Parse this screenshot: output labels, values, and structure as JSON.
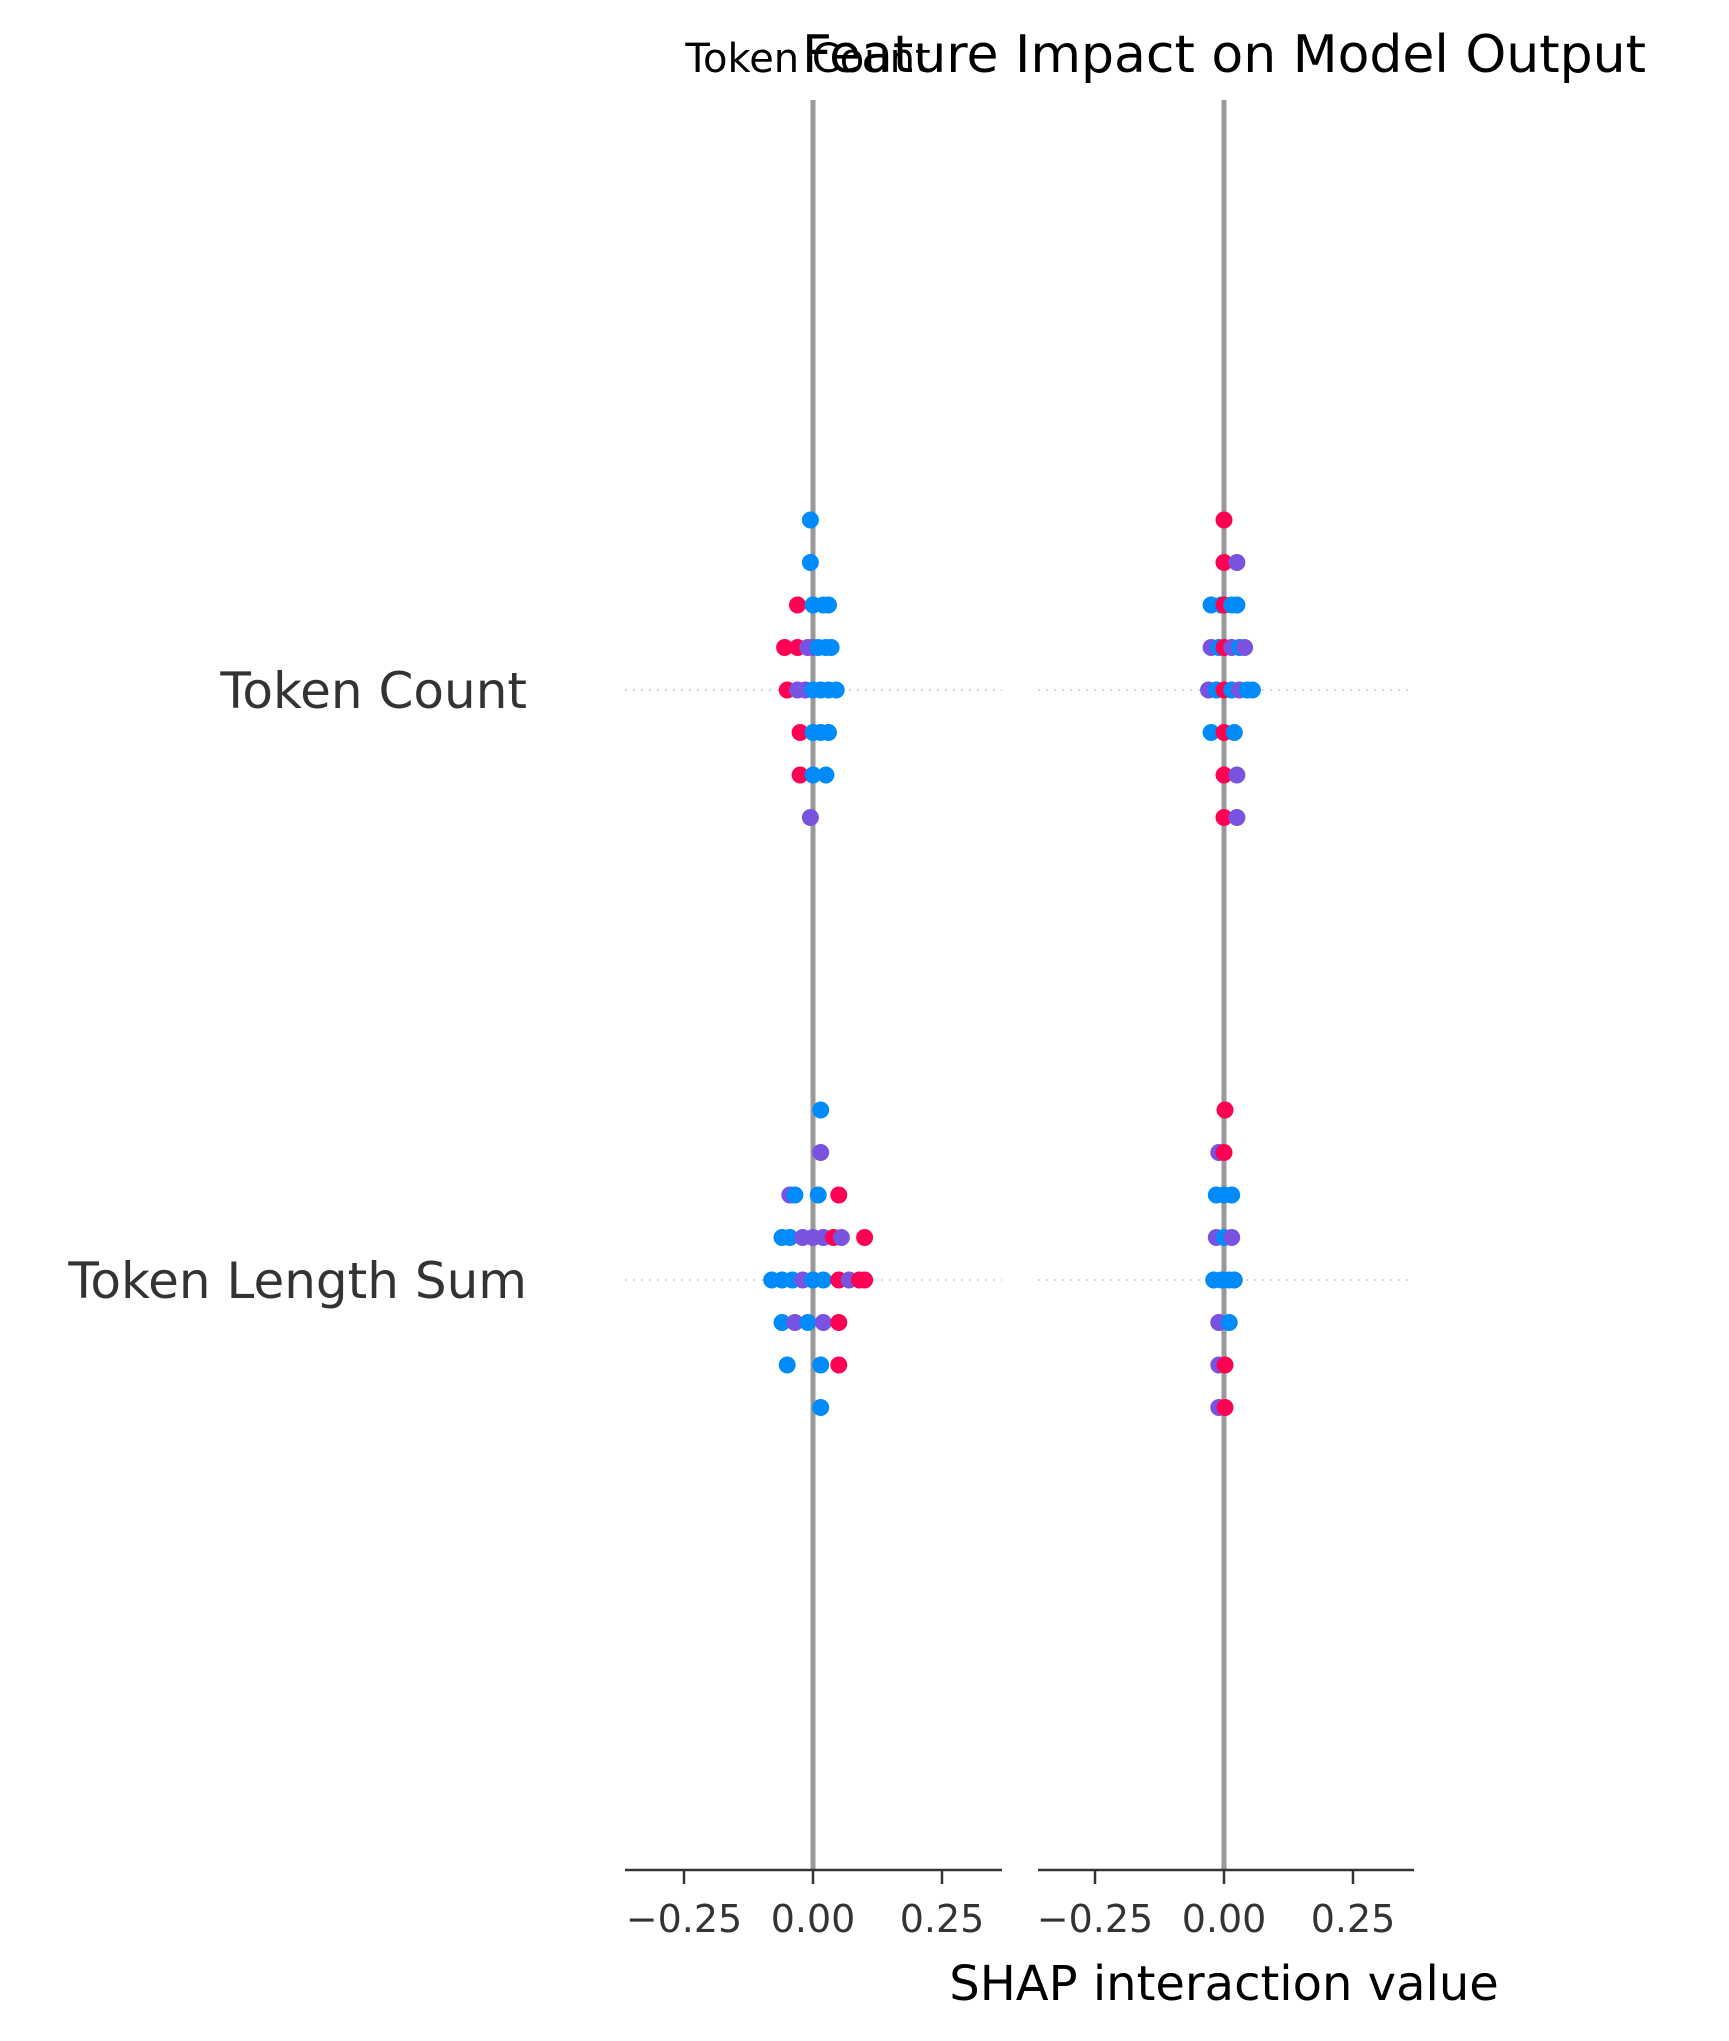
{
  "chart_data": {
    "type": "scatter",
    "title": "Feature Impact on Model Output",
    "xlabel": "SHAP interaction value",
    "features": [
      "Token Count",
      "Token Length Sum"
    ],
    "xlim": [
      -0.37,
      0.37
    ],
    "xticks": [
      "−0.25",
      "0.00",
      "0.25"
    ],
    "xtick_values": [
      -0.25,
      0,
      0.25
    ],
    "colors": {
      "high": "#ff0052",
      "mid": "#7a52e0",
      "low": "#008bfb"
    },
    "panels": [
      {
        "subtitle": "Token Count",
        "rows": [
          {
            "feature": "Token Count",
            "points": [
              {
                "x": -0.005,
                "y": 4,
                "c": "low"
              },
              {
                "x": -0.005,
                "y": 3,
                "c": "low"
              },
              {
                "x": -0.03,
                "y": 2,
                "c": "high"
              },
              {
                "x": 0.0,
                "y": 2,
                "c": "low"
              },
              {
                "x": 0.02,
                "y": 2,
                "c": "low"
              },
              {
                "x": 0.03,
                "y": 2,
                "c": "low"
              },
              {
                "x": -0.055,
                "y": 1,
                "c": "high"
              },
              {
                "x": -0.03,
                "y": 1,
                "c": "high"
              },
              {
                "x": -0.01,
                "y": 1,
                "c": "mid"
              },
              {
                "x": 0.0,
                "y": 1,
                "c": "mid"
              },
              {
                "x": 0.01,
                "y": 1,
                "c": "low"
              },
              {
                "x": 0.025,
                "y": 1,
                "c": "low"
              },
              {
                "x": 0.035,
                "y": 1,
                "c": "low"
              },
              {
                "x": -0.05,
                "y": 0,
                "c": "high"
              },
              {
                "x": -0.03,
                "y": 0,
                "c": "mid"
              },
              {
                "x": -0.015,
                "y": 0,
                "c": "mid"
              },
              {
                "x": 0.0,
                "y": 0,
                "c": "low"
              },
              {
                "x": 0.015,
                "y": 0,
                "c": "low"
              },
              {
                "x": 0.03,
                "y": 0,
                "c": "low"
              },
              {
                "x": 0.045,
                "y": 0,
                "c": "low"
              },
              {
                "x": -0.025,
                "y": -1,
                "c": "high"
              },
              {
                "x": 0.0,
                "y": -1,
                "c": "low"
              },
              {
                "x": 0.015,
                "y": -1,
                "c": "low"
              },
              {
                "x": 0.03,
                "y": -1,
                "c": "low"
              },
              {
                "x": -0.025,
                "y": -2,
                "c": "high"
              },
              {
                "x": 0.0,
                "y": -2,
                "c": "low"
              },
              {
                "x": 0.025,
                "y": -2,
                "c": "low"
              },
              {
                "x": -0.005,
                "y": -3,
                "c": "mid"
              }
            ]
          },
          {
            "feature": "Token Length Sum",
            "points": [
              {
                "x": 0.015,
                "y": 4,
                "c": "low"
              },
              {
                "x": 0.015,
                "y": 3,
                "c": "mid"
              },
              {
                "x": -0.045,
                "y": 2,
                "c": "mid"
              },
              {
                "x": -0.035,
                "y": 2,
                "c": "low"
              },
              {
                "x": 0.01,
                "y": 2,
                "c": "low"
              },
              {
                "x": 0.05,
                "y": 2,
                "c": "high"
              },
              {
                "x": -0.06,
                "y": 1,
                "c": "low"
              },
              {
                "x": -0.045,
                "y": 1,
                "c": "low"
              },
              {
                "x": -0.02,
                "y": 1,
                "c": "mid"
              },
              {
                "x": 0.0,
                "y": 1,
                "c": "mid"
              },
              {
                "x": 0.02,
                "y": 1,
                "c": "mid"
              },
              {
                "x": 0.04,
                "y": 1,
                "c": "high"
              },
              {
                "x": 0.055,
                "y": 1,
                "c": "mid"
              },
              {
                "x": 0.1,
                "y": 1,
                "c": "high"
              },
              {
                "x": -0.08,
                "y": 0,
                "c": "low"
              },
              {
                "x": -0.06,
                "y": 0,
                "c": "low"
              },
              {
                "x": -0.04,
                "y": 0,
                "c": "low"
              },
              {
                "x": -0.02,
                "y": 0,
                "c": "mid"
              },
              {
                "x": 0.0,
                "y": 0,
                "c": "low"
              },
              {
                "x": 0.02,
                "y": 0,
                "c": "low"
              },
              {
                "x": 0.05,
                "y": 0,
                "c": "high"
              },
              {
                "x": 0.07,
                "y": 0,
                "c": "mid"
              },
              {
                "x": 0.09,
                "y": 0,
                "c": "high"
              },
              {
                "x": 0.1,
                "y": 0,
                "c": "high"
              },
              {
                "x": -0.06,
                "y": -1,
                "c": "low"
              },
              {
                "x": -0.035,
                "y": -1,
                "c": "mid"
              },
              {
                "x": -0.01,
                "y": -1,
                "c": "low"
              },
              {
                "x": 0.02,
                "y": -1,
                "c": "mid"
              },
              {
                "x": 0.05,
                "y": -1,
                "c": "high"
              },
              {
                "x": -0.05,
                "y": -2,
                "c": "low"
              },
              {
                "x": 0.015,
                "y": -2,
                "c": "low"
              },
              {
                "x": 0.05,
                "y": -2,
                "c": "high"
              },
              {
                "x": 0.015,
                "y": -3,
                "c": "low"
              }
            ]
          }
        ]
      },
      {
        "subtitle": "",
        "rows": [
          {
            "feature": "Token Count",
            "points": [
              {
                "x": 0.0,
                "y": 4,
                "c": "high"
              },
              {
                "x": 0.0,
                "y": 3,
                "c": "high"
              },
              {
                "x": 0.025,
                "y": 3,
                "c": "mid"
              },
              {
                "x": -0.025,
                "y": 2,
                "c": "low"
              },
              {
                "x": -0.005,
                "y": 2,
                "c": "low"
              },
              {
                "x": 0.0,
                "y": 2,
                "c": "high"
              },
              {
                "x": 0.015,
                "y": 2,
                "c": "low"
              },
              {
                "x": 0.025,
                "y": 2,
                "c": "low"
              },
              {
                "x": -0.025,
                "y": 1,
                "c": "mid"
              },
              {
                "x": -0.01,
                "y": 1,
                "c": "low"
              },
              {
                "x": 0.0,
                "y": 1,
                "c": "high"
              },
              {
                "x": 0.015,
                "y": 1,
                "c": "mid"
              },
              {
                "x": 0.03,
                "y": 1,
                "c": "low"
              },
              {
                "x": 0.04,
                "y": 1,
                "c": "mid"
              },
              {
                "x": -0.03,
                "y": 0,
                "c": "mid"
              },
              {
                "x": -0.015,
                "y": 0,
                "c": "low"
              },
              {
                "x": 0.0,
                "y": 0,
                "c": "high"
              },
              {
                "x": 0.015,
                "y": 0,
                "c": "low"
              },
              {
                "x": 0.03,
                "y": 0,
                "c": "mid"
              },
              {
                "x": 0.045,
                "y": 0,
                "c": "low"
              },
              {
                "x": 0.055,
                "y": 0,
                "c": "low"
              },
              {
                "x": -0.025,
                "y": -1,
                "c": "low"
              },
              {
                "x": 0.0,
                "y": -1,
                "c": "high"
              },
              {
                "x": 0.02,
                "y": -1,
                "c": "low"
              },
              {
                "x": 0.0,
                "y": -2,
                "c": "high"
              },
              {
                "x": 0.025,
                "y": -2,
                "c": "mid"
              },
              {
                "x": 0.0,
                "y": -3,
                "c": "high"
              },
              {
                "x": 0.025,
                "y": -3,
                "c": "mid"
              }
            ]
          },
          {
            "feature": "Token Length Sum",
            "points": [
              {
                "x": 0.002,
                "y": 4,
                "c": "high"
              },
              {
                "x": -0.01,
                "y": 3,
                "c": "mid"
              },
              {
                "x": 0.0,
                "y": 3,
                "c": "high"
              },
              {
                "x": -0.015,
                "y": 2,
                "c": "low"
              },
              {
                "x": 0.0,
                "y": 2,
                "c": "low"
              },
              {
                "x": 0.015,
                "y": 2,
                "c": "low"
              },
              {
                "x": -0.015,
                "y": 1,
                "c": "mid"
              },
              {
                "x": 0.0,
                "y": 1,
                "c": "low"
              },
              {
                "x": 0.015,
                "y": 1,
                "c": "mid"
              },
              {
                "x": -0.02,
                "y": 0,
                "c": "low"
              },
              {
                "x": -0.005,
                "y": 0,
                "c": "low"
              },
              {
                "x": 0.01,
                "y": 0,
                "c": "low"
              },
              {
                "x": 0.02,
                "y": 0,
                "c": "low"
              },
              {
                "x": -0.01,
                "y": -1,
                "c": "mid"
              },
              {
                "x": 0.01,
                "y": -1,
                "c": "low"
              },
              {
                "x": -0.01,
                "y": -2,
                "c": "mid"
              },
              {
                "x": 0.002,
                "y": -2,
                "c": "high"
              },
              {
                "x": -0.01,
                "y": -3,
                "c": "mid"
              },
              {
                "x": 0.002,
                "y": -3,
                "c": "high"
              }
            ]
          }
        ]
      }
    ]
  }
}
